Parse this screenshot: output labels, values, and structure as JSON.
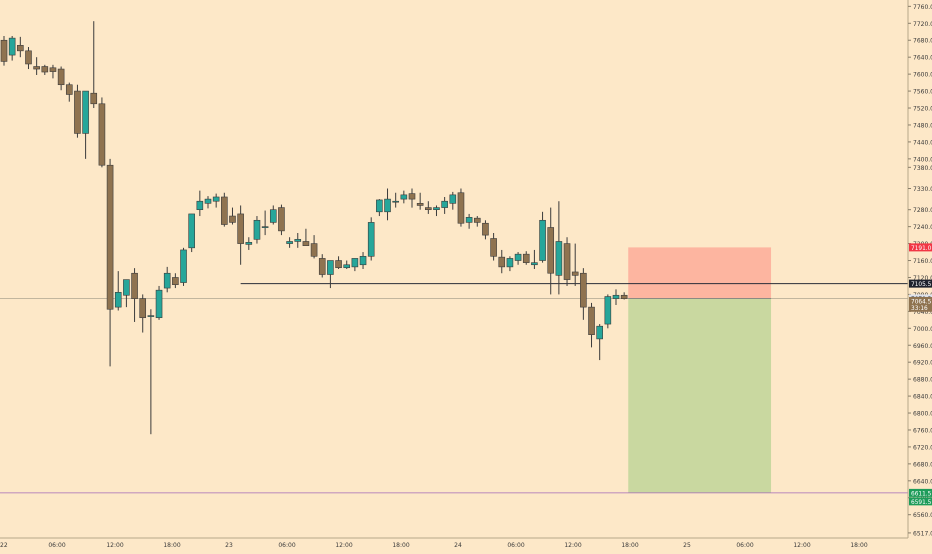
{
  "chart_data": {
    "type": "candlestick",
    "background": "#fde8c8",
    "colors": {
      "up": "#26a69a",
      "down": "#8f7350",
      "risk_zone": "#fdb5a0",
      "reward_zone": "#c9d8a0",
      "target_line": "#a268b8"
    },
    "y_range": [
      6505,
      7775
    ],
    "y_ticks": [
      "7760.0",
      "7720.0",
      "7680.0",
      "7640.0",
      "7600.0",
      "7560.0",
      "7520.0",
      "7480.0",
      "7440.0",
      "7400.0",
      "7380.0",
      "7330.0",
      "7280.0",
      "7240.0",
      "7200.0",
      "7160.0",
      "7120.0",
      "7080.0",
      "7040.0",
      "7000.0",
      "6960.0",
      "6920.0",
      "6880.0",
      "6840.0",
      "6800.0",
      "6760.0",
      "6720.0",
      "6680.0",
      "6640.0",
      "6600.0",
      "6560.0",
      "6517.0"
    ],
    "x_tick_labels": [
      "22",
      "06:00",
      "12:00",
      "18:00",
      "23",
      "06:00",
      "12:00",
      "18:00",
      "24",
      "06:00",
      "12:00",
      "18:00",
      "25",
      "06:00",
      "12:00",
      "18:00"
    ],
    "candles": [
      {
        "o": 7680,
        "h": 7690,
        "l": 7620,
        "c": 7630
      },
      {
        "o": 7645,
        "h": 7690,
        "l": 7632,
        "c": 7685
      },
      {
        "o": 7668,
        "h": 7688,
        "l": 7640,
        "c": 7655
      },
      {
        "o": 7655,
        "h": 7664,
        "l": 7612,
        "c": 7624
      },
      {
        "o": 7618,
        "h": 7640,
        "l": 7598,
        "c": 7612
      },
      {
        "o": 7618,
        "h": 7622,
        "l": 7598,
        "c": 7605
      },
      {
        "o": 7615,
        "h": 7622,
        "l": 7590,
        "c": 7606
      },
      {
        "o": 7612,
        "h": 7618,
        "l": 7562,
        "c": 7575
      },
      {
        "o": 7575,
        "h": 7580,
        "l": 7535,
        "c": 7552
      },
      {
        "o": 7560,
        "h": 7575,
        "l": 7450,
        "c": 7460
      },
      {
        "o": 7460,
        "h": 7550,
        "l": 7400,
        "c": 7560
      },
      {
        "o": 7555,
        "h": 7725,
        "l": 7520,
        "c": 7530
      },
      {
        "o": 7530,
        "h": 7545,
        "l": 7380,
        "c": 7385
      },
      {
        "o": 7385,
        "h": 7400,
        "l": 6910,
        "c": 7045
      },
      {
        "o": 7050,
        "h": 7135,
        "l": 7042,
        "c": 7085
      },
      {
        "o": 7078,
        "h": 7115,
        "l": 7050,
        "c": 7115
      },
      {
        "o": 7130,
        "h": 7142,
        "l": 7015,
        "c": 7070
      },
      {
        "o": 7070,
        "h": 7080,
        "l": 6990,
        "c": 7025
      },
      {
        "o": 7030,
        "h": 7045,
        "l": 6750,
        "c": 7030
      },
      {
        "o": 7025,
        "h": 7100,
        "l": 7020,
        "c": 7090
      },
      {
        "o": 7095,
        "h": 7145,
        "l": 7085,
        "c": 7130
      },
      {
        "o": 7120,
        "h": 7130,
        "l": 7095,
        "c": 7103
      },
      {
        "o": 7108,
        "h": 7190,
        "l": 7100,
        "c": 7185
      },
      {
        "o": 7190,
        "h": 7270,
        "l": 7180,
        "c": 7270
      },
      {
        "o": 7280,
        "h": 7325,
        "l": 7265,
        "c": 7300
      },
      {
        "o": 7295,
        "h": 7312,
        "l": 7283,
        "c": 7305
      },
      {
        "o": 7300,
        "h": 7318,
        "l": 7285,
        "c": 7310
      },
      {
        "o": 7310,
        "h": 7320,
        "l": 7240,
        "c": 7245
      },
      {
        "o": 7265,
        "h": 7285,
        "l": 7245,
        "c": 7250
      },
      {
        "o": 7270,
        "h": 7290,
        "l": 7150,
        "c": 7200
      },
      {
        "o": 7198,
        "h": 7215,
        "l": 7185,
        "c": 7203
      },
      {
        "o": 7210,
        "h": 7265,
        "l": 7200,
        "c": 7255
      },
      {
        "o": 7240,
        "h": 7278,
        "l": 7220,
        "c": 7240
      },
      {
        "o": 7250,
        "h": 7290,
        "l": 7245,
        "c": 7280
      },
      {
        "o": 7285,
        "h": 7292,
        "l": 7220,
        "c": 7230
      },
      {
        "o": 7200,
        "h": 7215,
        "l": 7190,
        "c": 7205
      },
      {
        "o": 7205,
        "h": 7225,
        "l": 7190,
        "c": 7210
      },
      {
        "o": 7205,
        "h": 7235,
        "l": 7195,
        "c": 7195
      },
      {
        "o": 7200,
        "h": 7220,
        "l": 7165,
        "c": 7170
      },
      {
        "o": 7165,
        "h": 7175,
        "l": 7120,
        "c": 7127
      },
      {
        "o": 7127,
        "h": 7160,
        "l": 7095,
        "c": 7160
      },
      {
        "o": 7160,
        "h": 7170,
        "l": 7140,
        "c": 7143
      },
      {
        "o": 7143,
        "h": 7160,
        "l": 7140,
        "c": 7150
      },
      {
        "o": 7145,
        "h": 7165,
        "l": 7135,
        "c": 7165
      },
      {
        "o": 7150,
        "h": 7180,
        "l": 7140,
        "c": 7170
      },
      {
        "o": 7170,
        "h": 7262,
        "l": 7160,
        "c": 7250
      },
      {
        "o": 7275,
        "h": 7305,
        "l": 7265,
        "c": 7303
      },
      {
        "o": 7275,
        "h": 7330,
        "l": 7255,
        "c": 7305
      },
      {
        "o": 7300,
        "h": 7320,
        "l": 7285,
        "c": 7300
      },
      {
        "o": 7305,
        "h": 7325,
        "l": 7295,
        "c": 7315
      },
      {
        "o": 7318,
        "h": 7330,
        "l": 7285,
        "c": 7305
      },
      {
        "o": 7295,
        "h": 7320,
        "l": 7280,
        "c": 7290
      },
      {
        "o": 7285,
        "h": 7300,
        "l": 7270,
        "c": 7280
      },
      {
        "o": 7280,
        "h": 7290,
        "l": 7265,
        "c": 7285
      },
      {
        "o": 7285,
        "h": 7310,
        "l": 7270,
        "c": 7300
      },
      {
        "o": 7295,
        "h": 7322,
        "l": 7280,
        "c": 7315
      },
      {
        "o": 7320,
        "h": 7330,
        "l": 7240,
        "c": 7248
      },
      {
        "o": 7250,
        "h": 7270,
        "l": 7235,
        "c": 7262
      },
      {
        "o": 7260,
        "h": 7265,
        "l": 7240,
        "c": 7250
      },
      {
        "o": 7248,
        "h": 7255,
        "l": 7210,
        "c": 7220
      },
      {
        "o": 7212,
        "h": 7225,
        "l": 7160,
        "c": 7170
      },
      {
        "o": 7168,
        "h": 7185,
        "l": 7130,
        "c": 7145
      },
      {
        "o": 7145,
        "h": 7170,
        "l": 7135,
        "c": 7165
      },
      {
        "o": 7160,
        "h": 7180,
        "l": 7150,
        "c": 7175
      },
      {
        "o": 7175,
        "h": 7182,
        "l": 7150,
        "c": 7155
      },
      {
        "o": 7150,
        "h": 7185,
        "l": 7140,
        "c": 7155
      },
      {
        "o": 7160,
        "h": 7275,
        "l": 7155,
        "c": 7255
      },
      {
        "o": 7238,
        "h": 7285,
        "l": 7080,
        "c": 7130
      },
      {
        "o": 7125,
        "h": 7300,
        "l": 7080,
        "c": 7205
      },
      {
        "o": 7200,
        "h": 7215,
        "l": 7100,
        "c": 7115
      },
      {
        "o": 7133,
        "h": 7200,
        "l": 7100,
        "c": 7125
      },
      {
        "o": 7130,
        "h": 7142,
        "l": 7020,
        "c": 7050
      },
      {
        "o": 7050,
        "h": 7060,
        "l": 6955,
        "c": 6985
      },
      {
        "o": 6975,
        "h": 7010,
        "l": 6925,
        "c": 7005
      },
      {
        "o": 7010,
        "h": 7080,
        "l": 7000,
        "c": 7075
      },
      {
        "o": 7070,
        "h": 7092,
        "l": 7055,
        "c": 7078
      },
      {
        "o": 7078,
        "h": 7085,
        "l": 7068,
        "c": 7070
      }
    ],
    "price_line": 7105.5,
    "risk_reward": {
      "entry": 7070.5,
      "stop": 7191.0,
      "target": 6611.5,
      "start_index": 76.5,
      "end_index": 94
    },
    "price_labels": [
      {
        "value": 7191.0,
        "text": "7191.0",
        "color": "#f23645"
      },
      {
        "value": 7105.5,
        "text": "7105.5",
        "color": "#1e222d"
      },
      {
        "value": 7070.5,
        "text": "7070.5",
        "color": "#e0e3eb"
      },
      {
        "value": 7064.5,
        "text": "7064.5",
        "color": "#8f7350"
      },
      {
        "value": 7048.5,
        "text": "33:16",
        "color": "#8f7350"
      },
      {
        "value": 6611.5,
        "text": "6611.5",
        "color": "#1e9c5a"
      },
      {
        "value": 6591.5,
        "text": "6591.5",
        "color": "#1e9c5a"
      }
    ]
  }
}
